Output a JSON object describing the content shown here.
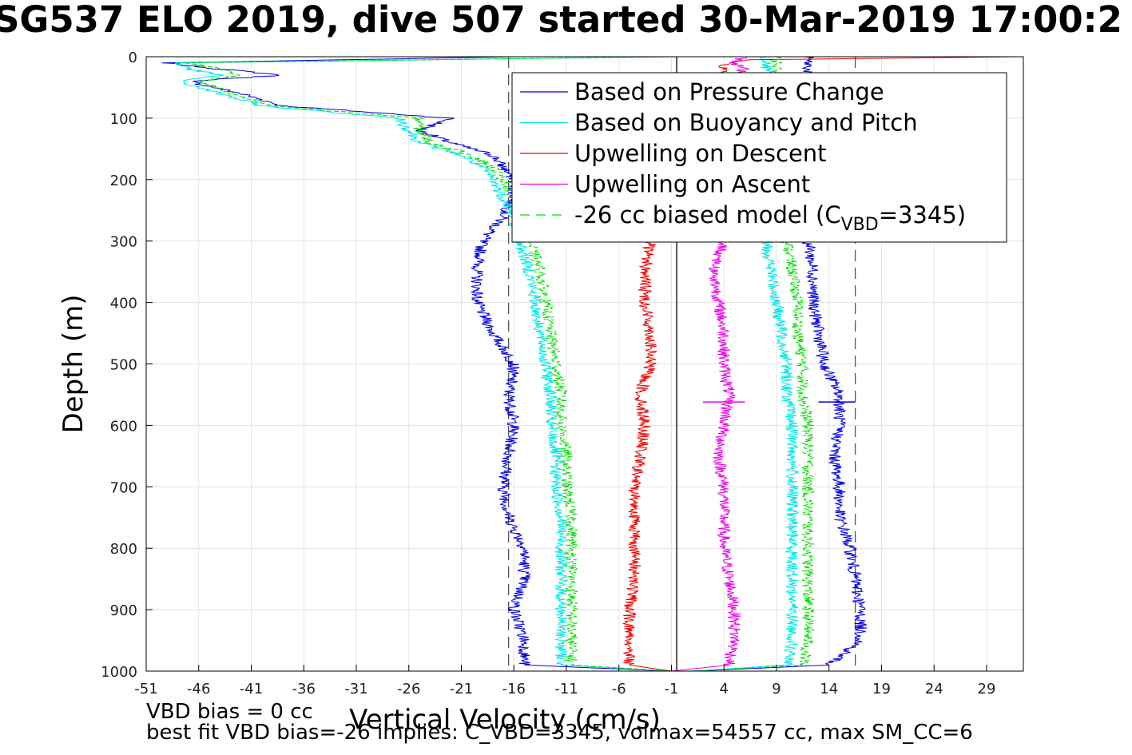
{
  "title": "SG537 ELO 2019, dive 507 started 30-Mar-2019 17:00:2",
  "footer": {
    "line1": "VBD bias = 0 cc",
    "line2": "best fit VBD bias=-26 implies: C_VBD=3345, volmax=54557 cc, max SM_CC=6"
  },
  "chart_data": {
    "type": "line",
    "xlabel": "Vertical Velocity (cm/s)",
    "ylabel": "Depth (m)",
    "xlim": [
      -51,
      32.5
    ],
    "ylim": [
      1000,
      0
    ],
    "xticks": [
      -51,
      -46,
      -41,
      -36,
      -31,
      -26,
      -21,
      -16,
      -11,
      -6,
      -1,
      4,
      9,
      14,
      19,
      24,
      29
    ],
    "yticks": [
      0,
      100,
      200,
      300,
      400,
      500,
      600,
      700,
      800,
      900,
      1000
    ],
    "grid": true,
    "legend_position": "top-right",
    "vertical_reference_lines": [
      {
        "x": -16.5,
        "style": "dashed",
        "color": "#555555"
      },
      {
        "x": -0.5,
        "style": "solid",
        "color": "#000000"
      },
      {
        "x": 16.5,
        "style": "dashed",
        "color": "#555555"
      }
    ],
    "series": [
      {
        "name": "Based on Pressure Change",
        "color": "#0000dd",
        "style": "solid",
        "segments": [
          {
            "depth": [
              0,
              10,
              20,
              30,
              40,
              60,
              80,
              100,
              120,
              140,
              160,
              180,
              200,
              230,
              260,
              300,
              350,
              400,
              450,
              500,
              550,
              600,
              650,
              700,
              750,
              800,
              850,
              900,
              950,
              990,
              1000
            ],
            "x": [
              -16,
              -49,
              -44,
              -38,
              -47,
              -42,
              -38,
              -22,
              -25,
              -22,
              -18,
              -17,
              -16,
              -16,
              -17,
              -19,
              -19.5,
              -19.5,
              -18,
              -16,
              -16.5,
              -16,
              -16.5,
              -17,
              -16.5,
              -15,
              -15,
              -16,
              -15,
              -15,
              -1
            ]
          },
          {
            "depth": [
              0,
              20,
              60,
              100,
              150,
              200,
              250,
              300,
              350,
              400,
              450,
              500,
              550,
              600,
              650,
              700,
              750,
              800,
              850,
              900,
              950,
              990,
              1000
            ],
            "x": [
              12,
              12,
              12,
              12,
              12,
              12,
              12,
              12,
              12.5,
              12.5,
              13,
              13.5,
              15,
              15,
              14.5,
              15,
              15,
              16,
              16.5,
              17,
              17,
              14,
              1
            ]
          }
        ]
      },
      {
        "name": "Based on Buoyancy and Pitch",
        "color": "#00e8e8",
        "style": "solid",
        "segments": [
          {
            "depth": [
              0,
              10,
              20,
              30,
              40,
              60,
              80,
              100,
              120,
              140,
              160,
              180,
              200,
              230,
              260,
              300,
              350,
              400,
              450,
              500,
              550,
              600,
              650,
              700,
              750,
              800,
              850,
              900,
              950,
              990,
              1000
            ],
            "x": [
              -1,
              -48,
              -47,
              -44,
              -48,
              -44,
              -40,
              -27,
              -26,
              -25,
              -21,
              -19,
              -18,
              -17,
              -16,
              -15.5,
              -14.5,
              -14,
              -13.5,
              -13,
              -12.5,
              -12.5,
              -12,
              -12,
              -11.5,
              -11.5,
              -11.5,
              -11.5,
              -11.5,
              -11.5,
              -1
            ]
          },
          {
            "depth": [
              0,
              20,
              60,
              100,
              150,
              200,
              250,
              300,
              350,
              400,
              450,
              500,
              550,
              600,
              650,
              700,
              750,
              800,
              850,
              900,
              950,
              990,
              1000
            ],
            "x": [
              8,
              8,
              8,
              8,
              8,
              8,
              8,
              8,
              8.5,
              9,
              9.5,
              10,
              10,
              10.5,
              10.5,
              10.5,
              10.5,
              10.5,
              10.5,
              10.5,
              10.5,
              10,
              1
            ]
          }
        ]
      },
      {
        "name": "Upwelling on Descent",
        "color": "#ee0000",
        "style": "solid",
        "segments": [
          {
            "depth": [
              300,
              350,
              400,
              450,
              500,
              550,
              600,
              650,
              700,
              750,
              800,
              850,
              900,
              950,
              990,
              1000
            ],
            "x": [
              -3,
              -3.5,
              -3.5,
              -3,
              -3,
              -4,
              -3.5,
              -4,
              -4.5,
              -4.5,
              -4.5,
              -4.5,
              -5,
              -5,
              -5,
              -1
            ]
          },
          {
            "depth": [
              0,
              5,
              10,
              20,
              30
            ],
            "x": [
              32,
              6,
              4,
              4,
              4
            ]
          }
        ]
      },
      {
        "name": "Upwelling on Ascent",
        "color": "#ee00ee",
        "style": "solid",
        "segments": [
          {
            "depth": [
              0,
              10,
              20,
              30
            ],
            "x": [
              6,
              5,
              6,
              5
            ]
          },
          {
            "depth": [
              300,
              350,
              400,
              450,
              500,
              550,
              600,
              650,
              700,
              750,
              800,
              850,
              900,
              950,
              990,
              1000
            ],
            "x": [
              4,
              3,
              3.5,
              4,
              4,
              4.5,
              4,
              3.5,
              4,
              4,
              4,
              4.5,
              5,
              5,
              4.5,
              -1
            ]
          }
        ]
      },
      {
        "name": "-26 cc biased model (C",
        "color": "#00dd00",
        "style": "dashed",
        "segments": [
          {
            "depth": [
              0,
              10,
              20,
              30,
              40,
              60,
              80,
              100,
              120,
              140,
              160,
              180,
              200,
              230,
              260,
              300,
              350,
              400,
              450,
              500,
              550,
              600,
              650,
              700,
              750,
              800,
              850,
              900,
              950,
              990,
              1000
            ],
            "x": [
              -1,
              -47,
              -44,
              -42,
              -46,
              -43,
              -39,
              -25,
              -25,
              -24,
              -20,
              -18,
              -17,
              -16,
              -15,
              -14.5,
              -13.5,
              -13,
              -12.5,
              -12,
              -11.5,
              -11.5,
              -11,
              -11,
              -10.5,
              -10.5,
              -10.5,
              -10.5,
              -10.5,
              -10.5,
              -1
            ]
          },
          {
            "depth": [
              0,
              20,
              60,
              100,
              150,
              200,
              250,
              300,
              350,
              400,
              450,
              500,
              550,
              600,
              650,
              700,
              750,
              800,
              850,
              900,
              950,
              990,
              1000
            ],
            "x": [
              9,
              9,
              9,
              9,
              9,
              9,
              9.5,
              10,
              10.5,
              11,
              11,
              11.5,
              11.5,
              12,
              12,
              12,
              12,
              12,
              12,
              12,
              12,
              11.5,
              1
            ]
          }
        ]
      }
    ],
    "legend_suffix": {
      "sub": "VBD",
      "rest": "=3345)"
    },
    "spikes": [
      {
        "color": "#ee00ee",
        "depth": 562,
        "x": [
          2,
          6
        ]
      },
      {
        "color": "#0000dd",
        "depth": 562,
        "x": [
          13,
          16.5
        ]
      }
    ]
  }
}
